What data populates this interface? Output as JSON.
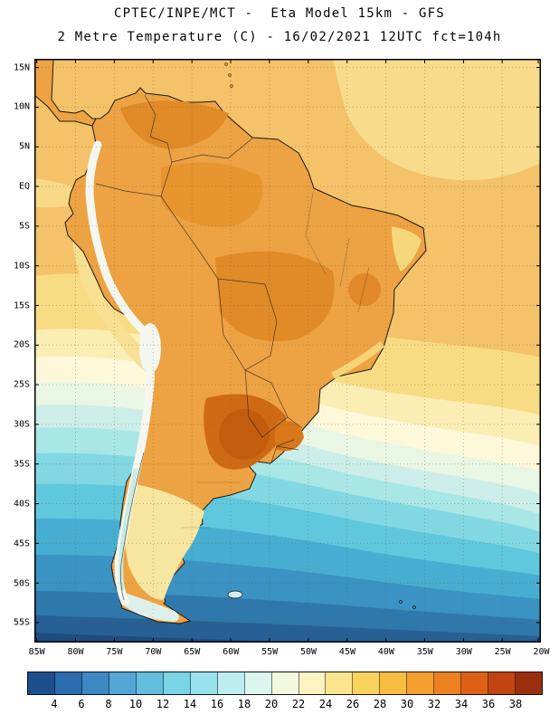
{
  "title": {
    "line1": "CPTEC/INPE/MCT -  Eta Model 15km - GFS",
    "line2": "2 Metre Temperature (C) - 16/02/2021 12UTC fct=104h"
  },
  "map": {
    "lat_labels": [
      "15N",
      "10N",
      "5N",
      "EQ",
      "5S",
      "10S",
      "15S",
      "20S",
      "25S",
      "30S",
      "35S",
      "40S",
      "45S",
      "50S",
      "55S"
    ],
    "lon_labels": [
      "85W",
      "80W",
      "75W",
      "70W",
      "65W",
      "60W",
      "55W",
      "50W",
      "45W",
      "40W",
      "35W",
      "30W",
      "25W",
      "20W"
    ]
  },
  "colorbar": {
    "tick_labels": [
      "4",
      "6",
      "8",
      "10",
      "12",
      "14",
      "16",
      "18",
      "20",
      "22",
      "24",
      "26",
      "28",
      "30",
      "32",
      "34",
      "36",
      "38"
    ],
    "colors": [
      "#1c4f8c",
      "#2a6cae",
      "#3d89c4",
      "#54a6d6",
      "#63bede",
      "#79d4e6",
      "#97e2ec",
      "#bceef0",
      "#daf6ee",
      "#f2f8dc",
      "#fcf3c0",
      "#fbe48e",
      "#f9d25e",
      "#f7bc42",
      "#f3a02e",
      "#ec8122",
      "#dd6016",
      "#c04510",
      "#992f0c"
    ]
  }
}
